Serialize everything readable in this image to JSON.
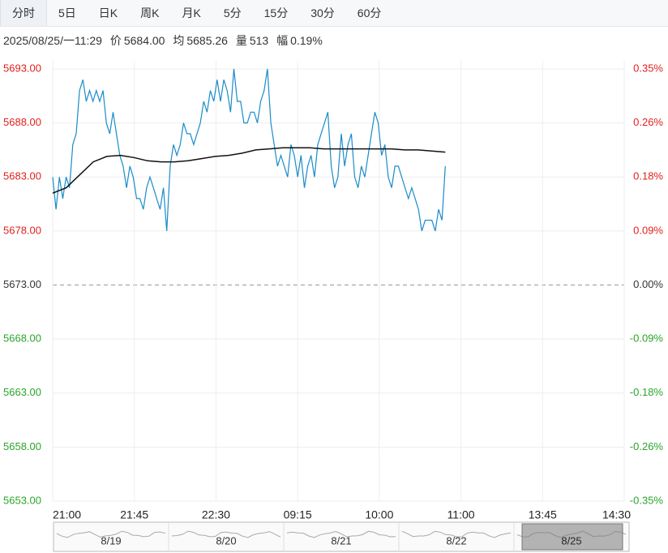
{
  "tabs": [
    "分时",
    "5日",
    "日K",
    "周K",
    "月K",
    "5分",
    "15分",
    "30分",
    "60分"
  ],
  "active_tab": 0,
  "info": {
    "datetime": "2025/08/25/一11:29",
    "price_label": "价",
    "price_value": "5684.00",
    "avg_label": "均",
    "avg_value": "5685.26",
    "volume_label": "量",
    "volume_value": "513",
    "change_label": "幅",
    "change_value": "0.19%"
  },
  "colors": {
    "up": "#e0211d",
    "down": "#2aa52a",
    "neutral": "#333333",
    "price_line": "#1a8cc8",
    "avg_line": "#111111",
    "grid": "#eeeeee",
    "navigator_line": "#aaaaaa"
  },
  "chart_data": {
    "type": "line",
    "prev_close": 5673.0,
    "ylim": [
      5653.0,
      5693.0
    ],
    "y_ticks": [
      "5693.00",
      "5688.00",
      "5683.00",
      "5678.00",
      "5673.00",
      "5668.00",
      "5663.00",
      "5658.00",
      "5653.00"
    ],
    "pct_ticks": [
      "0.35%",
      "0.26%",
      "0.18%",
      "0.09%",
      "0.00%",
      "-0.09%",
      "-0.18%",
      "-0.26%",
      "-0.35%"
    ],
    "x_ticks": [
      "21:00",
      "21:45",
      "22:30",
      "09:15",
      "10:00",
      "11:00",
      "13:45",
      "14:30"
    ],
    "session_minutes": 345,
    "series": [
      {
        "name": "价",
        "values": [
          5683,
          5680,
          5683,
          5681,
          5683,
          5682,
          5686,
          5687,
          5691,
          5692,
          5690,
          5691,
          5690,
          5691,
          5690,
          5691,
          5688,
          5687,
          5689,
          5687,
          5685,
          5684,
          5682,
          5684,
          5683,
          5681,
          5681,
          5680,
          5682,
          5683,
          5682,
          5681,
          5680,
          5682,
          5678,
          5684,
          5686,
          5685,
          5686,
          5688,
          5687,
          5687,
          5686,
          5687,
          5688,
          5690,
          5689,
          5691,
          5690,
          5692,
          5690,
          5692,
          5691,
          5689,
          5693,
          5690,
          5690,
          5688,
          5688,
          5689,
          5689,
          5688,
          5690,
          5691,
          5693,
          5688,
          5686,
          5684,
          5685,
          5684,
          5683,
          5686,
          5685,
          5683,
          5685,
          5682,
          5684,
          5685,
          5683,
          5686,
          5687,
          5688,
          5689,
          5684,
          5682,
          5683,
          5687,
          5684,
          5686,
          5687,
          5683,
          5682,
          5684,
          5683,
          5685,
          5687,
          5689,
          5688,
          5685,
          5686,
          5683,
          5682,
          5684,
          5684,
          5683,
          5682,
          5681,
          5682,
          5681,
          5680,
          5678,
          5679,
          5679,
          5679,
          5678,
          5680,
          5679,
          5684
        ],
        "color": "#1a8cc8"
      },
      {
        "name": "均",
        "values": [
          5681.5,
          5682.0,
          5683.2,
          5684.4,
          5684.9,
          5685.0,
          5684.8,
          5684.5,
          5684.4,
          5684.4,
          5684.5,
          5684.7,
          5684.9,
          5685.0,
          5685.2,
          5685.5,
          5685.6,
          5685.7,
          5685.7,
          5685.7,
          5685.6,
          5685.6,
          5685.6,
          5685.6,
          5685.6,
          5685.6,
          5685.5,
          5685.5,
          5685.4,
          5685.3
        ],
        "color": "#111111"
      }
    ],
    "navigator_dates": [
      "8/19",
      "8/20",
      "8/21",
      "8/22",
      "8/25"
    ]
  }
}
